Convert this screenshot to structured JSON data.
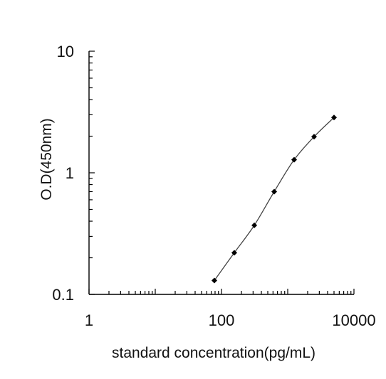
{
  "chart_data": {
    "type": "line",
    "title": "",
    "xlabel": "standard concentration(pg/mL)",
    "ylabel": "O.D(450nm)",
    "x_scale": "log",
    "y_scale": "log",
    "xlim": [
      1,
      10000
    ],
    "ylim": [
      0.1,
      10
    ],
    "x_ticks": [
      1,
      100,
      10000
    ],
    "x_tick_labels": [
      "1",
      "100",
      "10000"
    ],
    "y_ticks": [
      0.1,
      1,
      10
    ],
    "y_tick_labels": [
      "0.1",
      "1",
      "10"
    ],
    "grid": false,
    "legend": "none",
    "series": [
      {
        "x": [
          78,
          156,
          313,
          625,
          1250,
          2500,
          5000
        ],
        "y": [
          0.13,
          0.22,
          0.37,
          0.7,
          1.28,
          1.98,
          2.85
        ],
        "marker": "diamond",
        "color": "#000000"
      }
    ]
  }
}
